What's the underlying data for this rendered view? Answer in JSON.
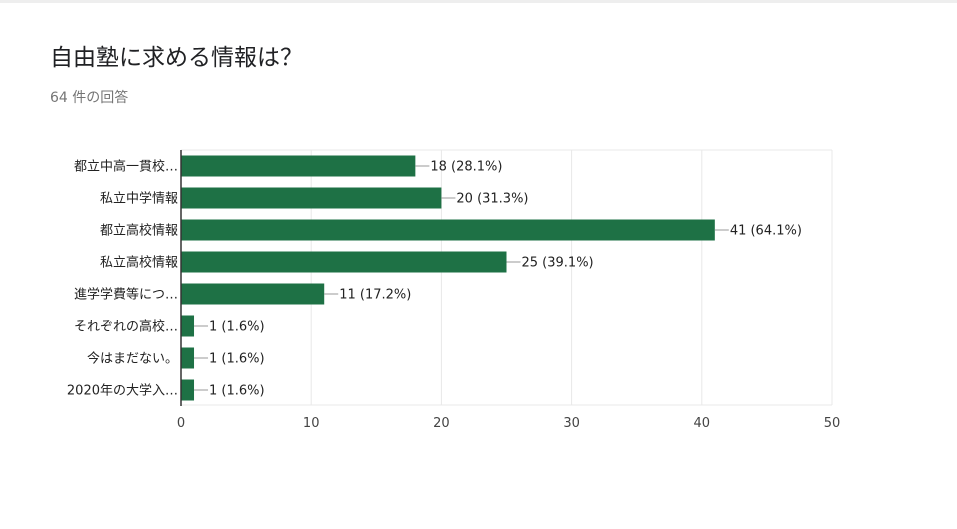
{
  "question": {
    "title": "自由塾に求める情報は？",
    "response_count": "64 件の回答"
  },
  "colors": {
    "bar": "#1e7145",
    "grid": "#e8e8e8",
    "axis": "#333333"
  },
  "chart_data": {
    "type": "bar",
    "orientation": "horizontal",
    "categories": [
      "都立中高一貫校…",
      "私立中学情報",
      "都立高校情報",
      "私立高校情報",
      "進学学費等につ…",
      "それぞれの高校…",
      "今はまだない。",
      "2020年の大学入…"
    ],
    "values": [
      18,
      20,
      41,
      25,
      11,
      1,
      1,
      1
    ],
    "data_labels": [
      "18 (28.1%)",
      "20 (31.3%)",
      "41 (64.1%)",
      "25 (39.1%)",
      "11 (17.2%)",
      "1 (1.6%)",
      "1 (1.6%)",
      "1 (1.6%)"
    ],
    "xlim": [
      0,
      50
    ],
    "xticks": [
      0,
      10,
      20,
      30,
      40,
      50
    ],
    "grid": true,
    "legend": "none"
  }
}
